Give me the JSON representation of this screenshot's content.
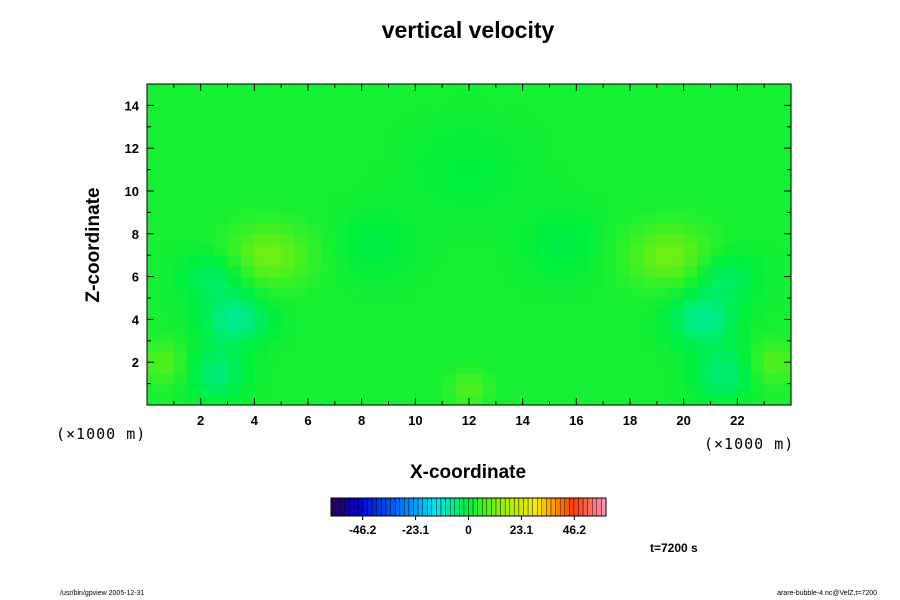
{
  "chart_data": {
    "type": "heatmap",
    "title": "vertical velocity",
    "xlabel": "X-coordinate",
    "ylabel": "Z-coordinate",
    "x_unit": "(×1000 m)",
    "y_unit": "(×1000 m)",
    "xlim": [
      0,
      24
    ],
    "ylim": [
      0,
      15
    ],
    "x_ticks": [
      2,
      4,
      6,
      8,
      10,
      12,
      14,
      16,
      18,
      20,
      22
    ],
    "y_ticks": [
      2,
      4,
      6,
      8,
      10,
      12,
      14
    ],
    "field_background_value": 2,
    "features": [
      {
        "x": 4.5,
        "z": 7.0,
        "value": 9,
        "rx": 1.6,
        "rz": 1.4
      },
      {
        "x": 19.5,
        "z": 7.0,
        "value": 9,
        "rx": 1.6,
        "rz": 1.4
      },
      {
        "x": 2.6,
        "z": 6.0,
        "value": -6,
        "rx": 1.2,
        "rz": 1.2
      },
      {
        "x": 21.4,
        "z": 6.0,
        "value": -6,
        "rx": 1.2,
        "rz": 1.2
      },
      {
        "x": 3.3,
        "z": 4.0,
        "value": -9,
        "rx": 1.2,
        "rz": 1.1
      },
      {
        "x": 20.7,
        "z": 4.0,
        "value": -9,
        "rx": 1.2,
        "rz": 1.1
      },
      {
        "x": 2.6,
        "z": 1.5,
        "value": -7,
        "rx": 1.0,
        "rz": 1.2
      },
      {
        "x": 21.4,
        "z": 1.5,
        "value": -7,
        "rx": 1.0,
        "rz": 1.2
      },
      {
        "x": 0.6,
        "z": 2.0,
        "value": 6,
        "rx": 0.8,
        "rz": 1.0
      },
      {
        "x": 23.4,
        "z": 2.0,
        "value": 6,
        "rx": 0.8,
        "rz": 1.0
      },
      {
        "x": 12.0,
        "z": 0.8,
        "value": 6,
        "rx": 0.7,
        "rz": 0.8
      },
      {
        "x": 8.5,
        "z": 7.5,
        "value": -3,
        "rx": 1.4,
        "rz": 1.5
      },
      {
        "x": 15.5,
        "z": 7.5,
        "value": -3,
        "rx": 1.4,
        "rz": 1.5
      },
      {
        "x": 12.0,
        "z": 11.0,
        "value": -2,
        "rx": 2.0,
        "rz": 2.0
      }
    ],
    "colorbar": {
      "min": -60,
      "max": 60,
      "tick_labels": [
        "-46.2",
        "-23.1",
        "0",
        "23.1",
        "46.2"
      ],
      "tick_values": [
        -46.2,
        -23.1,
        0,
        23.1,
        46.2
      ]
    }
  },
  "time_label": "t=7200 s",
  "footer_left": "/usr/bin/gpview 2005-12-31",
  "footer_right": "arare-bubble-4.nc@VelZ,t=7200"
}
